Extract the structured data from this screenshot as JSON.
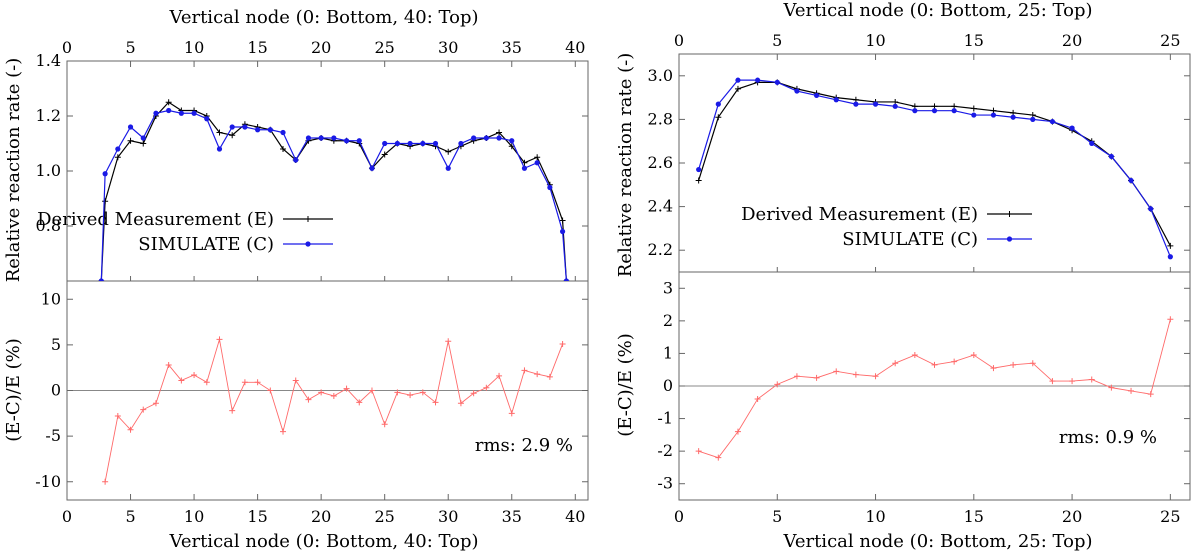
{
  "chart_data": [
    {
      "type": "line",
      "top_axis_label": "Vertical node (0: Bottom, 40: Top)",
      "bottom_axis_label": "Vertical node (0: Bottom, 40: Top)",
      "top_ylabel": "Relative reaction rate (-)",
      "bottom_ylabel": "(E-C)/E (%)",
      "xlim": [
        0,
        41
      ],
      "xticks": [
        0,
        5,
        10,
        15,
        20,
        25,
        30,
        35,
        40
      ],
      "top_ylim": [
        0.6,
        1.4
      ],
      "top_yticks": [
        0.8,
        1.0,
        1.2,
        1.4
      ],
      "top_ytick_labels": [
        "0.8",
        "1.0",
        "1.2",
        "1.4"
      ],
      "bottom_ylim": [
        -12,
        12
      ],
      "bottom_yticks": [
        -10,
        -5,
        0,
        5,
        10
      ],
      "legend_position": "center",
      "rms_label": "rms: 2.9 %",
      "series": [
        {
          "name": "Derived Measurement (E)",
          "color": "#000000",
          "marker": "plus",
          "x": [
            2.7,
            3,
            4,
            5,
            6,
            7,
            8,
            9,
            10,
            11,
            12,
            13,
            14,
            15,
            16,
            17,
            18,
            19,
            20,
            21,
            22,
            23,
            24,
            25,
            26,
            27,
            28,
            29,
            30,
            31,
            32,
            33,
            34,
            35,
            36,
            37,
            38,
            39,
            39.3
          ],
          "y": [
            0.6,
            0.89,
            1.05,
            1.11,
            1.1,
            1.2,
            1.25,
            1.22,
            1.22,
            1.2,
            1.14,
            1.13,
            1.17,
            1.16,
            1.15,
            1.08,
            1.04,
            1.11,
            1.12,
            1.11,
            1.11,
            1.1,
            1.01,
            1.06,
            1.1,
            1.09,
            1.1,
            1.09,
            1.07,
            1.09,
            1.11,
            1.12,
            1.14,
            1.09,
            1.03,
            1.05,
            0.95,
            0.82,
            0.6
          ]
        },
        {
          "name": "SIMULATE (C)",
          "color": "#1a1ae6",
          "marker": "dot",
          "x": [
            2.7,
            3,
            4,
            5,
            6,
            7,
            8,
            9,
            10,
            11,
            12,
            13,
            14,
            15,
            16,
            17,
            18,
            19,
            20,
            21,
            22,
            23,
            24,
            25,
            26,
            27,
            28,
            29,
            30,
            31,
            32,
            33,
            34,
            35,
            36,
            37,
            38,
            39,
            39.3
          ],
          "y": [
            0.6,
            0.99,
            1.08,
            1.16,
            1.12,
            1.21,
            1.22,
            1.21,
            1.21,
            1.19,
            1.08,
            1.16,
            1.16,
            1.15,
            1.15,
            1.14,
            1.04,
            1.12,
            1.12,
            1.12,
            1.11,
            1.11,
            1.01,
            1.1,
            1.1,
            1.1,
            1.1,
            1.1,
            1.01,
            1.1,
            1.12,
            1.12,
            1.12,
            1.11,
            1.01,
            1.03,
            0.94,
            0.78,
            0.6
          ]
        },
        {
          "name": "",
          "color": "#ff6a6a",
          "marker": "plus",
          "panel": "bottom",
          "x": [
            3,
            4,
            5,
            6,
            7,
            8,
            9,
            10,
            11,
            12,
            13,
            14,
            15,
            16,
            17,
            18,
            19,
            20,
            21,
            22,
            23,
            24,
            25,
            26,
            27,
            28,
            29,
            30,
            31,
            32,
            33,
            34,
            35,
            36,
            37,
            38,
            39
          ],
          "y": [
            -10.0,
            -2.8,
            -4.3,
            -2.1,
            -1.4,
            2.8,
            1.1,
            1.7,
            0.9,
            5.6,
            -2.2,
            0.9,
            0.9,
            0.0,
            -4.5,
            1.1,
            -1.0,
            -0.2,
            -0.6,
            0.2,
            -1.3,
            0.0,
            -3.7,
            -0.2,
            -0.5,
            -0.2,
            -1.3,
            5.4,
            -1.4,
            -0.3,
            0.3,
            1.6,
            -2.5,
            2.2,
            1.8,
            1.5,
            5.1
          ]
        }
      ]
    },
    {
      "type": "line",
      "top_axis_label": "Vertical node (0: Bottom, 25: Top)",
      "bottom_axis_label": "Vertical node (0: Bottom, 25: Top)",
      "top_ylabel": "Relative reaction rate (-)",
      "bottom_ylabel": "(E-C)/E (%)",
      "xlim": [
        0,
        26
      ],
      "xticks": [
        0,
        5,
        10,
        15,
        20,
        25
      ],
      "top_ylim": [
        2.1,
        3.1
      ],
      "top_yticks": [
        2.2,
        2.4,
        2.6,
        2.8,
        3.0
      ],
      "top_ytick_labels": [
        "2.2",
        "2.4",
        "2.6",
        "2.8",
        "3.0"
      ],
      "bottom_ylim": [
        -3.5,
        3.5
      ],
      "bottom_yticks": [
        -3,
        -2,
        -1,
        0,
        1,
        2,
        3
      ],
      "legend_position": "center-right",
      "rms_label": "rms: 0.9 %",
      "series": [
        {
          "name": "Derived Measurement (E)",
          "color": "#000000",
          "marker": "plus",
          "x": [
            1,
            2,
            3,
            4,
            5,
            6,
            7,
            8,
            9,
            10,
            11,
            12,
            13,
            14,
            15,
            16,
            17,
            18,
            19,
            20,
            21,
            22,
            23,
            24,
            25
          ],
          "y": [
            2.52,
            2.81,
            2.94,
            2.97,
            2.97,
            2.94,
            2.92,
            2.9,
            2.89,
            2.88,
            2.88,
            2.86,
            2.86,
            2.86,
            2.85,
            2.84,
            2.83,
            2.82,
            2.79,
            2.75,
            2.7,
            2.63,
            2.52,
            2.39,
            2.22
          ]
        },
        {
          "name": "SIMULATE (C)",
          "color": "#1a1ae6",
          "marker": "dot",
          "x": [
            1,
            2,
            3,
            4,
            5,
            6,
            7,
            8,
            9,
            10,
            11,
            12,
            13,
            14,
            15,
            16,
            17,
            18,
            19,
            20,
            21,
            22,
            23,
            24,
            25
          ],
          "y": [
            2.57,
            2.87,
            2.98,
            2.98,
            2.97,
            2.93,
            2.91,
            2.89,
            2.87,
            2.87,
            2.86,
            2.84,
            2.84,
            2.84,
            2.82,
            2.82,
            2.81,
            2.8,
            2.79,
            2.76,
            2.69,
            2.63,
            2.52,
            2.39,
            2.17
          ]
        },
        {
          "name": "",
          "color": "#ff6a6a",
          "marker": "plus",
          "panel": "bottom",
          "x": [
            1,
            2,
            3,
            4,
            5,
            6,
            7,
            8,
            9,
            10,
            11,
            12,
            13,
            14,
            15,
            16,
            17,
            18,
            19,
            20,
            21,
            22,
            23,
            24,
            25
          ],
          "y": [
            -2.0,
            -2.2,
            -1.4,
            -0.4,
            0.05,
            0.3,
            0.25,
            0.45,
            0.35,
            0.3,
            0.7,
            0.95,
            0.65,
            0.75,
            0.95,
            0.55,
            0.65,
            0.7,
            0.15,
            0.15,
            0.2,
            -0.05,
            -0.15,
            -0.25,
            2.05
          ]
        }
      ]
    }
  ]
}
